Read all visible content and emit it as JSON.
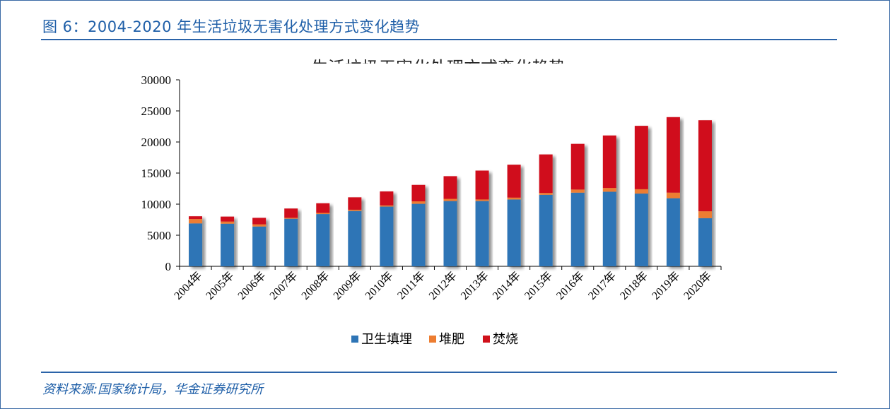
{
  "figure": {
    "title": "图 6：2004-2020 年生活垃圾无害化处理方式变化趋势",
    "chart_heading_partial": "生活垃圾无害化处理方式变化趋势",
    "source": "资料来源:国家统计局，华金证券研究所"
  },
  "colors": {
    "accent": "#1f5fa8",
    "landfill": "#2e75b6",
    "compost": "#ed7d31",
    "incineration": "#d0111b"
  },
  "chart_data": {
    "type": "bar",
    "stacked": true,
    "categories": [
      "2004年",
      "2005年",
      "2006年",
      "2007年",
      "2008年",
      "2009年",
      "2010年",
      "2011年",
      "2012年",
      "2013年",
      "2014年",
      "2015年",
      "2016年",
      "2017年",
      "2018年",
      "2019年",
      "2020年"
    ],
    "series": [
      {
        "name": "卫生填埋",
        "color": "#2e75b6",
        "values": [
          6900,
          6850,
          6400,
          7650,
          8400,
          8900,
          9600,
          10050,
          10500,
          10500,
          10750,
          11500,
          11850,
          12000,
          11700,
          10950,
          7750
        ]
      },
      {
        "name": "堆肥",
        "color": "#ed7d31",
        "values": [
          700,
          350,
          350,
          150,
          200,
          200,
          200,
          400,
          350,
          250,
          300,
          300,
          500,
          600,
          700,
          900,
          1100
        ]
      },
      {
        "name": "焚烧",
        "color": "#d0111b",
        "values": [
          450,
          800,
          1050,
          1500,
          1550,
          2000,
          2250,
          2650,
          3650,
          4650,
          5300,
          6200,
          7350,
          8450,
          10200,
          12150,
          14650
        ]
      }
    ],
    "ylim": [
      0,
      30000
    ],
    "yticks": [
      "0",
      "5000",
      "10000",
      "15000",
      "20000",
      "25000",
      "30000"
    ],
    "xlabel": "",
    "ylabel": "",
    "grid": false,
    "legend": "bottom"
  }
}
